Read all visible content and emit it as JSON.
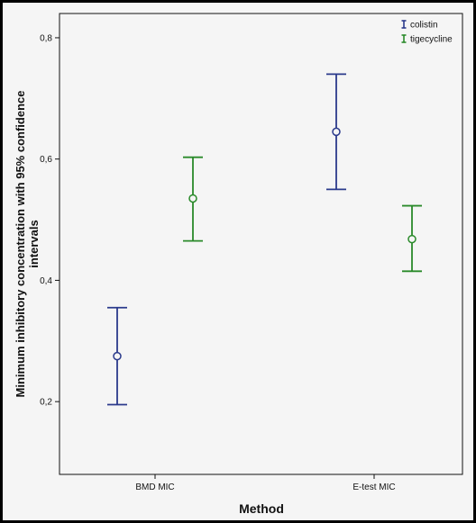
{
  "chart_data": {
    "type": "errorbar",
    "xlabel": "Method",
    "ylabel_line1": "Minimum inhibitory concentration with 95% confidence",
    "ylabel_line2": "intervals",
    "categories": [
      "BMD MIC",
      "E-test MIC"
    ],
    "ylim": [
      0.08,
      0.84
    ],
    "yticks": [
      0.2,
      0.4,
      0.6,
      0.8
    ],
    "ytick_labels": [
      "0,2",
      "0,4",
      "0,6",
      "0,8"
    ],
    "legend_position": "top-right",
    "grid": false,
    "series": [
      {
        "name": "colistin",
        "color": "#2b3a8c",
        "points": [
          {
            "category": "BMD MIC",
            "mean": 0.275,
            "lower": 0.195,
            "upper": 0.355
          },
          {
            "category": "E-test MIC",
            "mean": 0.645,
            "lower": 0.55,
            "upper": 0.74
          }
        ]
      },
      {
        "name": "tigecycline",
        "color": "#2a8a2a",
        "points": [
          {
            "category": "BMD MIC",
            "mean": 0.535,
            "lower": 0.465,
            "upper": 0.603
          },
          {
            "category": "E-test MIC",
            "mean": 0.468,
            "lower": 0.415,
            "upper": 0.523
          }
        ]
      }
    ]
  }
}
